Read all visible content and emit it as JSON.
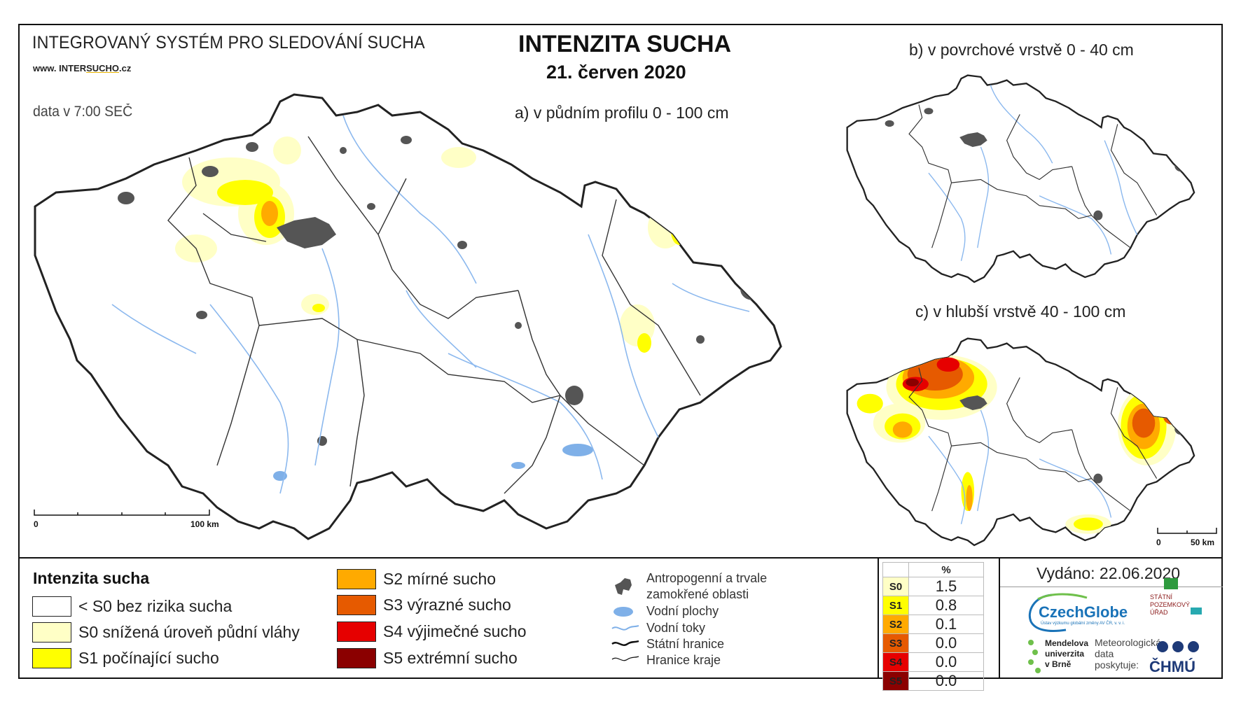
{
  "header": {
    "system_name": "INTEGROVANÝ SYSTÉM PRO SLEDOVÁNÍ SUCHA",
    "website_prefix": "www. INTER",
    "website_mid": "SUCHO",
    "website_suffix": ".cz",
    "data_time": "data v 7:00 SEČ",
    "title": "INTENZITA SUCHA",
    "date": "21. červen 2020"
  },
  "maps": {
    "a_label": "a) v půdním profilu 0 - 100 cm",
    "b_label": "b) v povrchové vrstvě 0 - 40 cm",
    "c_label": "c) v hlubší vrstvě 40 - 100 cm",
    "main_scale": {
      "start": "0",
      "end": "100 km"
    },
    "small_scale": {
      "start": "0",
      "end": "50 km"
    }
  },
  "legend": {
    "title": "Intenzita sucha",
    "classes": [
      {
        "label": "< S0 bez rizika sucha",
        "color": "#ffffff"
      },
      {
        "label": "S0 snížená úroveň půdní vláhy",
        "color": "#ffffc6"
      },
      {
        "label": "S1 počínající sucho",
        "color": "#ffff00"
      },
      {
        "label": "S2 mírné sucho",
        "color": "#ffaa00"
      },
      {
        "label": "S3 výrazné sucho",
        "color": "#e65a00"
      },
      {
        "label": "S4 výjimečné sucho",
        "color": "#e60000"
      },
      {
        "label": "S5 extrémní sucho",
        "color": "#8b0000"
      }
    ],
    "symbols": [
      {
        "label_line1": "Antropogenní a trvale",
        "label_line2": "zamokřené oblasti",
        "icon": "urban-area-icon"
      },
      {
        "label": "Vodní plochy",
        "icon": "water-body-icon"
      },
      {
        "label": "Vodní toky",
        "icon": "river-icon"
      },
      {
        "label": "Státní hranice",
        "icon": "state-border-icon"
      },
      {
        "label": "Hranice kraje",
        "icon": "region-border-icon"
      }
    ]
  },
  "stats": {
    "header": "%",
    "rows": [
      {
        "code": "S0",
        "value": "1.5",
        "color": "#ffffc6"
      },
      {
        "code": "S1",
        "value": "0.8",
        "color": "#ffff00"
      },
      {
        "code": "S2",
        "value": "0.1",
        "color": "#ffaa00"
      },
      {
        "code": "S3",
        "value": "0.0",
        "color": "#e65a00"
      },
      {
        "code": "S4",
        "value": "0.0",
        "color": "#e60000"
      },
      {
        "code": "S5",
        "value": "0.0",
        "color": "#8b0000"
      }
    ]
  },
  "footer": {
    "issued": "Vydáno: 22.06.2020",
    "czechglobe": "CzechGlobe",
    "czechglobe_sub": "Ústav výzkumu globální změny AV ČR, v. v. i.",
    "spu_line1": "STÁTNÍ",
    "spu_line2": "POZEMKOVÝ",
    "spu_line3": "ÚŘAD",
    "mendel_line1": "Mendelova",
    "mendel_line2": "univerzita",
    "mendel_line3": "v Brně",
    "meteo_line1": "Meteorologická",
    "meteo_line2": "data",
    "meteo_line3": "poskytuje:",
    "chmu": "ČHMÚ"
  }
}
